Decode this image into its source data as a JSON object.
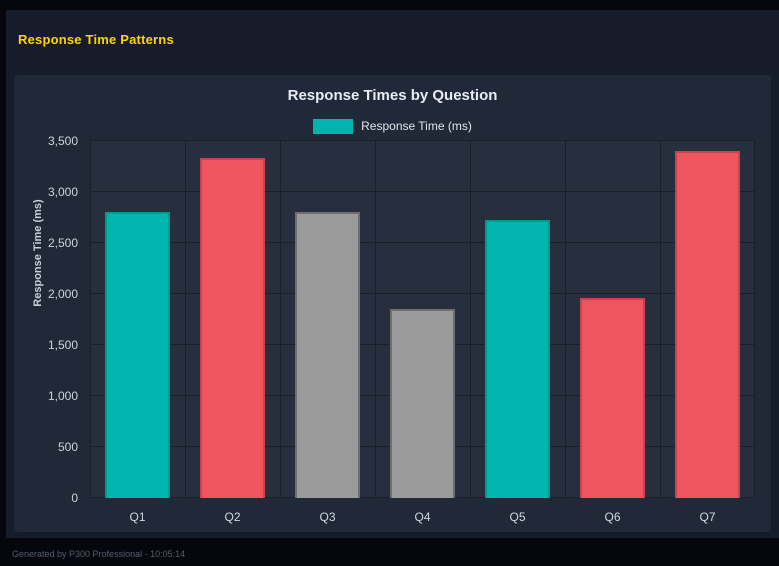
{
  "header": {
    "title": "Response Time Patterns"
  },
  "footer": {
    "text": "Generated by P300 Professional - 10:05:14"
  },
  "colors": {
    "page_bg": "#05070d",
    "content_bg": "#171c2a",
    "panel_bg": "#212837",
    "plot_bg": "#272e3d",
    "grid": "#1a1f2d",
    "accent_yellow": "#ffd400",
    "teal": "#00b5ad",
    "red": "#f0545f",
    "gray": "#9b9b9b",
    "title_text": "#e9ecf2",
    "tick_text": "#cfd3dc"
  },
  "chart_data": {
    "type": "bar",
    "title": "Response Times by Question",
    "legend": [
      {
        "label": "Response Time (ms)",
        "color": "#00b5ad"
      }
    ],
    "legend_position": "top",
    "categories": [
      "Q1",
      "Q2",
      "Q3",
      "Q4",
      "Q5",
      "Q6",
      "Q7"
    ],
    "values": [
      2800,
      3330,
      2800,
      1850,
      2730,
      1960,
      3400
    ],
    "bar_colors": [
      "#00b5ad",
      "#f0545f",
      "#9b9b9b",
      "#9b9b9b",
      "#00b5ad",
      "#f0545f",
      "#f0545f"
    ],
    "bar_border_colors": [
      "#009a93",
      "#c8434e",
      "#6e6e6e",
      "#6e6e6e",
      "#009a93",
      "#c8434e",
      "#c8434e"
    ],
    "xlabel": "",
    "ylabel": "Response Time (ms)",
    "ylim": [
      0,
      3500
    ],
    "yticks": [
      0,
      500,
      1000,
      1500,
      2000,
      2500,
      3000,
      3500
    ],
    "grid": true
  }
}
